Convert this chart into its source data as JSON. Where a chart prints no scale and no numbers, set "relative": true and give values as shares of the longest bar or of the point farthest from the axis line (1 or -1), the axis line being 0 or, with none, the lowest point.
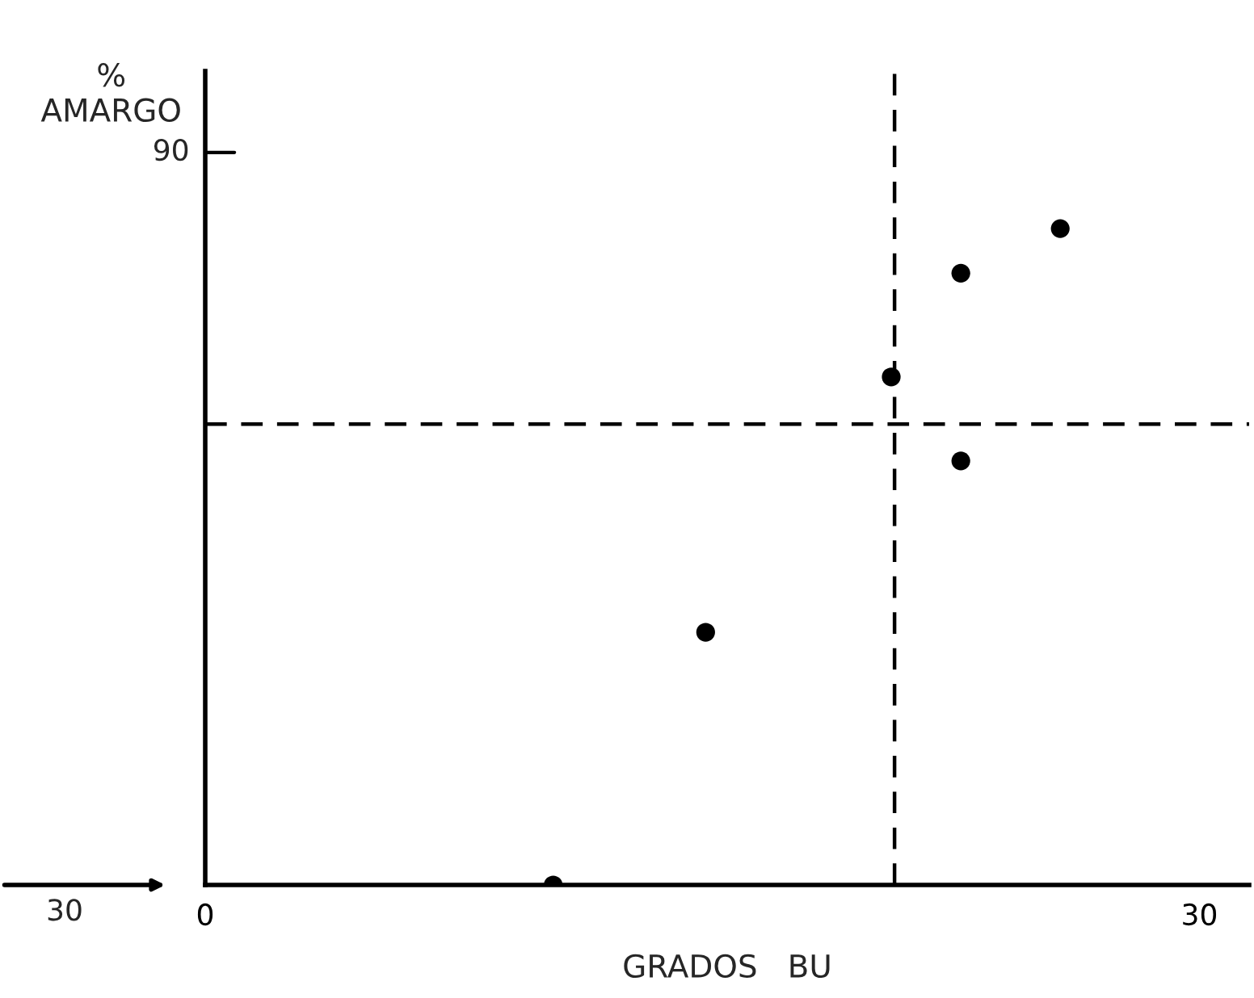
{
  "chart_data": {
    "type": "scatter",
    "xlabel": "GRADOS   BU",
    "ylabel": "%\nAMARGO",
    "relative": true,
    "x": [
      10.5,
      15.1,
      20.7,
      22.8,
      22.8,
      25.8
    ],
    "series": [
      {
        "color": "#000000",
        "values": [
          0,
          0.385,
          0.774,
          0.646,
          0.932,
          1
        ]
      }
    ],
    "xlim": [
      0,
      31.5
    ],
    "xticks": [
      0,
      30
    ],
    "ref_lines": [
      {
        "axis": "x",
        "value": 20.8,
        "line_style": "dashed"
      },
      {
        "axis": "y",
        "value": 0.702,
        "line_style": "dashed"
      }
    ],
    "annotations": [
      "90",
      "30"
    ],
    "marker": "circle",
    "grid": false
  }
}
